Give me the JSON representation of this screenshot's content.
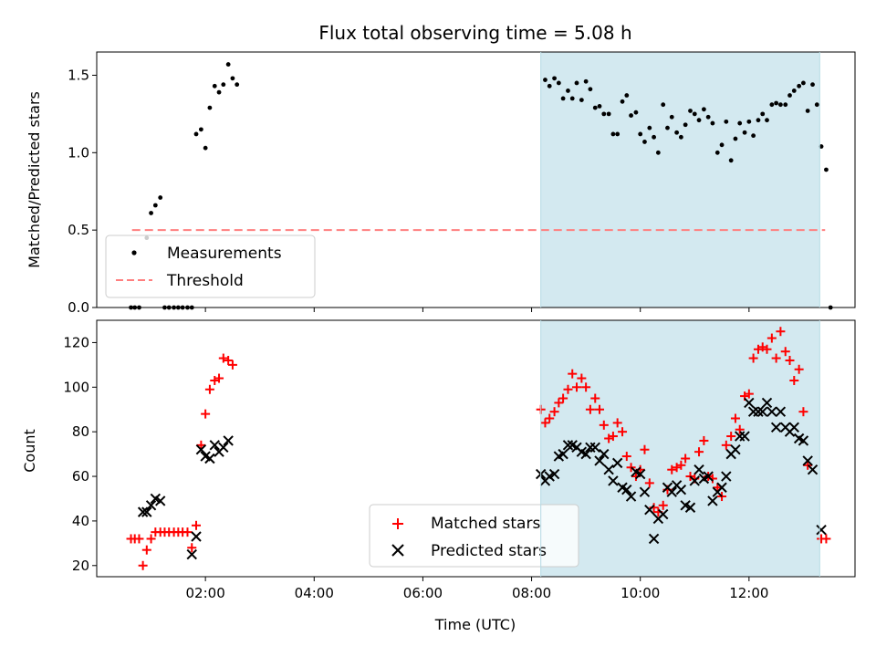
{
  "chart_data": [
    {
      "type": "scatter",
      "title": "Flux total observing time = 5.08 h",
      "xlabel": "",
      "ylabel": "Matched/Predicted stars",
      "xlim": [
        0.0,
        13.95
      ],
      "ylim": [
        0.0,
        1.65
      ],
      "yticks": [
        "0.0",
        "0.5",
        "1.0",
        "1.5"
      ],
      "ytick_values": [
        0.0,
        0.5,
        1.0,
        1.5
      ],
      "xtick_values": [
        2,
        4,
        6,
        8,
        10,
        12
      ],
      "shaded_region": {
        "x": [
          8.17,
          13.3
        ],
        "color": "#d3e9f0"
      },
      "threshold": {
        "name": "Threshold",
        "value": 0.5,
        "x": [
          0.65,
          13.4
        ],
        "color": "#ff7f7f",
        "style": "dashed"
      },
      "legend_position": "lower-left",
      "series": [
        {
          "name": "Measurements",
          "color": "#000000",
          "marker": "dot",
          "points": [
            [
              0.63,
              0.0
            ],
            [
              0.7,
              0.0
            ],
            [
              0.78,
              0.0
            ],
            [
              0.92,
              0.45
            ],
            [
              1.0,
              0.61
            ],
            [
              1.08,
              0.66
            ],
            [
              1.17,
              0.71
            ],
            [
              1.25,
              0.0
            ],
            [
              1.33,
              0.0
            ],
            [
              1.42,
              0.0
            ],
            [
              1.5,
              0.0
            ],
            [
              1.58,
              0.0
            ],
            [
              1.67,
              0.0
            ],
            [
              1.75,
              0.0
            ],
            [
              1.83,
              1.12
            ],
            [
              1.92,
              1.15
            ],
            [
              2.0,
              1.03
            ],
            [
              2.08,
              1.29
            ],
            [
              2.17,
              1.43
            ],
            [
              2.25,
              1.39
            ],
            [
              2.33,
              1.44
            ],
            [
              2.42,
              1.57
            ],
            [
              2.5,
              1.48
            ],
            [
              2.58,
              1.44
            ],
            [
              8.25,
              1.47
            ],
            [
              8.33,
              1.43
            ],
            [
              8.42,
              1.48
            ],
            [
              8.5,
              1.45
            ],
            [
              8.58,
              1.35
            ],
            [
              8.67,
              1.4
            ],
            [
              8.75,
              1.35
            ],
            [
              8.83,
              1.45
            ],
            [
              8.92,
              1.34
            ],
            [
              9.0,
              1.46
            ],
            [
              9.08,
              1.41
            ],
            [
              9.17,
              1.29
            ],
            [
              9.25,
              1.3
            ],
            [
              9.33,
              1.25
            ],
            [
              9.42,
              1.25
            ],
            [
              9.5,
              1.12
            ],
            [
              9.58,
              1.12
            ],
            [
              9.67,
              1.33
            ],
            [
              9.75,
              1.37
            ],
            [
              9.83,
              1.24
            ],
            [
              9.92,
              1.26
            ],
            [
              10.0,
              1.12
            ],
            [
              10.08,
              1.07
            ],
            [
              10.17,
              1.16
            ],
            [
              10.25,
              1.1
            ],
            [
              10.33,
              1.0
            ],
            [
              10.42,
              1.31
            ],
            [
              10.5,
              1.16
            ],
            [
              10.58,
              1.23
            ],
            [
              10.67,
              1.13
            ],
            [
              10.75,
              1.1
            ],
            [
              10.83,
              1.18
            ],
            [
              10.92,
              1.27
            ],
            [
              11.0,
              1.25
            ],
            [
              11.08,
              1.21
            ],
            [
              11.17,
              1.28
            ],
            [
              11.25,
              1.23
            ],
            [
              11.33,
              1.19
            ],
            [
              11.42,
              1.0
            ],
            [
              11.5,
              1.05
            ],
            [
              11.58,
              1.2
            ],
            [
              11.67,
              0.95
            ],
            [
              11.75,
              1.09
            ],
            [
              11.83,
              1.19
            ],
            [
              11.92,
              1.13
            ],
            [
              12.0,
              1.2
            ],
            [
              12.08,
              1.11
            ],
            [
              12.17,
              1.21
            ],
            [
              12.25,
              1.25
            ],
            [
              12.33,
              1.21
            ],
            [
              12.42,
              1.31
            ],
            [
              12.5,
              1.32
            ],
            [
              12.58,
              1.31
            ],
            [
              12.67,
              1.31
            ],
            [
              12.75,
              1.37
            ],
            [
              12.83,
              1.4
            ],
            [
              12.92,
              1.43
            ],
            [
              13.0,
              1.45
            ],
            [
              13.08,
              1.27
            ],
            [
              13.17,
              1.44
            ],
            [
              13.25,
              1.31
            ],
            [
              13.33,
              1.04
            ],
            [
              13.42,
              0.89
            ],
            [
              13.5,
              0.0
            ]
          ]
        }
      ]
    },
    {
      "type": "scatter",
      "title": "",
      "xlabel": "Time (UTC)",
      "ylabel": "Count",
      "xlim": [
        0.0,
        13.95
      ],
      "ylim": [
        15,
        130
      ],
      "yticks": [
        "20",
        "40",
        "60",
        "80",
        "100",
        "120"
      ],
      "ytick_values": [
        20,
        40,
        60,
        80,
        100,
        120
      ],
      "xticks": [
        "02:00",
        "04:00",
        "06:00",
        "08:00",
        "10:00",
        "12:00"
      ],
      "xtick_values": [
        2,
        4,
        6,
        8,
        10,
        12
      ],
      "shaded_region": {
        "x": [
          8.17,
          13.3
        ],
        "color": "#d3e9f0"
      },
      "legend_position": "lower-center",
      "series": [
        {
          "name": "Matched stars",
          "color": "#ff0000",
          "marker": "plus",
          "points": [
            [
              0.63,
              32
            ],
            [
              0.7,
              32
            ],
            [
              0.78,
              32
            ],
            [
              0.85,
              20
            ],
            [
              0.92,
              27
            ],
            [
              1.0,
              32
            ],
            [
              1.08,
              35
            ],
            [
              1.17,
              35
            ],
            [
              1.25,
              35
            ],
            [
              1.33,
              35
            ],
            [
              1.42,
              35
            ],
            [
              1.5,
              35
            ],
            [
              1.58,
              35
            ],
            [
              1.67,
              35
            ],
            [
              1.75,
              28
            ],
            [
              1.83,
              38
            ],
            [
              1.92,
              74
            ],
            [
              2.0,
              88
            ],
            [
              2.08,
              99
            ],
            [
              2.17,
              103
            ],
            [
              2.25,
              104
            ],
            [
              2.33,
              113
            ],
            [
              2.42,
              112
            ],
            [
              2.5,
              110
            ],
            [
              8.17,
              90
            ],
            [
              8.25,
              84
            ],
            [
              8.33,
              86
            ],
            [
              8.42,
              89
            ],
            [
              8.5,
              93
            ],
            [
              8.58,
              95
            ],
            [
              8.67,
              99
            ],
            [
              8.75,
              106
            ],
            [
              8.83,
              100
            ],
            [
              8.92,
              104
            ],
            [
              9.0,
              100
            ],
            [
              9.08,
              90
            ],
            [
              9.17,
              95
            ],
            [
              9.25,
              90
            ],
            [
              9.33,
              83
            ],
            [
              9.42,
              77
            ],
            [
              9.5,
              78
            ],
            [
              9.58,
              84
            ],
            [
              9.67,
              80
            ],
            [
              9.75,
              69
            ],
            [
              9.83,
              64
            ],
            [
              9.92,
              60
            ],
            [
              10.0,
              63
            ],
            [
              10.08,
              72
            ],
            [
              10.17,
              57
            ],
            [
              10.25,
              46
            ],
            [
              10.33,
              44
            ],
            [
              10.42,
              47
            ],
            [
              10.5,
              54
            ],
            [
              10.58,
              63
            ],
            [
              10.67,
              64
            ],
            [
              10.75,
              65
            ],
            [
              10.83,
              68
            ],
            [
              10.92,
              60
            ],
            [
              11.0,
              59
            ],
            [
              11.08,
              71
            ],
            [
              11.17,
              76
            ],
            [
              11.25,
              60
            ],
            [
              11.33,
              59
            ],
            [
              11.42,
              55
            ],
            [
              11.5,
              51
            ],
            [
              11.58,
              74
            ],
            [
              11.67,
              78
            ],
            [
              11.75,
              86
            ],
            [
              11.83,
              81
            ],
            [
              11.92,
              96
            ],
            [
              12.0,
              97
            ],
            [
              12.08,
              113
            ],
            [
              12.17,
              117
            ],
            [
              12.25,
              118
            ],
            [
              12.33,
              117
            ],
            [
              12.42,
              122
            ],
            [
              12.5,
              113
            ],
            [
              12.58,
              125
            ],
            [
              12.67,
              116
            ],
            [
              12.75,
              112
            ],
            [
              12.83,
              103
            ],
            [
              12.92,
              108
            ],
            [
              13.0,
              89
            ],
            [
              13.08,
              65
            ],
            [
              13.33,
              32
            ],
            [
              13.42,
              32
            ]
          ]
        },
        {
          "name": "Predicted stars",
          "color": "#000000",
          "marker": "x",
          "points": [
            [
              0.85,
              44
            ],
            [
              0.92,
              44
            ],
            [
              1.0,
              47
            ],
            [
              1.08,
              50
            ],
            [
              1.17,
              49
            ],
            [
              1.75,
              25
            ],
            [
              1.83,
              33
            ],
            [
              1.92,
              72
            ],
            [
              2.0,
              69
            ],
            [
              2.08,
              68
            ],
            [
              2.17,
              74
            ],
            [
              2.25,
              71
            ],
            [
              2.33,
              73
            ],
            [
              2.42,
              76
            ],
            [
              8.17,
              61
            ],
            [
              8.25,
              58
            ],
            [
              8.33,
              60
            ],
            [
              8.42,
              61
            ],
            [
              8.5,
              69
            ],
            [
              8.58,
              70
            ],
            [
              8.67,
              74
            ],
            [
              8.75,
              74
            ],
            [
              8.83,
              73
            ],
            [
              8.92,
              71
            ],
            [
              9.0,
              70
            ],
            [
              9.08,
              73
            ],
            [
              9.17,
              73
            ],
            [
              9.25,
              67
            ],
            [
              9.33,
              70
            ],
            [
              9.42,
              63
            ],
            [
              9.5,
              58
            ],
            [
              9.58,
              66
            ],
            [
              9.67,
              55
            ],
            [
              9.75,
              54
            ],
            [
              9.83,
              51
            ],
            [
              9.92,
              62
            ],
            [
              10.0,
              61
            ],
            [
              10.08,
              53
            ],
            [
              10.17,
              45
            ],
            [
              10.25,
              32
            ],
            [
              10.33,
              41
            ],
            [
              10.42,
              43
            ],
            [
              10.5,
              55
            ],
            [
              10.58,
              53
            ],
            [
              10.67,
              56
            ],
            [
              10.75,
              54
            ],
            [
              10.83,
              47
            ],
            [
              10.92,
              46
            ],
            [
              11.0,
              58
            ],
            [
              11.08,
              63
            ],
            [
              11.17,
              59
            ],
            [
              11.25,
              60
            ],
            [
              11.33,
              49
            ],
            [
              11.42,
              53
            ],
            [
              11.5,
              55
            ],
            [
              11.58,
              60
            ],
            [
              11.67,
              70
            ],
            [
              11.75,
              72
            ],
            [
              11.83,
              78
            ],
            [
              11.92,
              78
            ],
            [
              12.0,
              93
            ],
            [
              12.08,
              89
            ],
            [
              12.17,
              89
            ],
            [
              12.25,
              89
            ],
            [
              12.33,
              93
            ],
            [
              12.42,
              89
            ],
            [
              12.5,
              82
            ],
            [
              12.58,
              89
            ],
            [
              12.67,
              82
            ],
            [
              12.75,
              80
            ],
            [
              12.83,
              82
            ],
            [
              12.92,
              77
            ],
            [
              13.0,
              76
            ],
            [
              13.08,
              67
            ],
            [
              13.17,
              63
            ],
            [
              13.33,
              36
            ]
          ]
        }
      ]
    }
  ]
}
